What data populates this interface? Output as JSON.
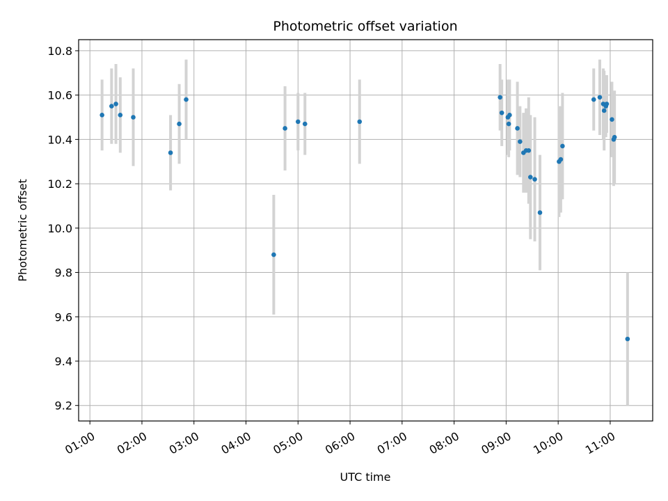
{
  "chart_data": {
    "type": "scatter",
    "title": "Photometric offset variation",
    "xlabel": "UTC time",
    "ylabel": "Photometric offset",
    "x_unit": "UTC time of day",
    "x_ticks": [
      "01:00",
      "02:00",
      "03:00",
      "04:00",
      "05:00",
      "06:00",
      "07:00",
      "08:00",
      "09:00",
      "10:00",
      "11:00"
    ],
    "xlim": [
      "00:47",
      "11:49"
    ],
    "y_ticks": [
      "9.2",
      "9.4",
      "9.6",
      "9.8",
      "10.0",
      "10.2",
      "10.4",
      "10.6",
      "10.8"
    ],
    "ylim": [
      9.13,
      10.85
    ],
    "grid": true,
    "marker_color": "#1f77b4",
    "errorbar_color": "#d3d3d3",
    "series": [
      {
        "points": [
          {
            "x": "01:14",
            "y": 10.51,
            "err": 0.16
          },
          {
            "x": "01:25",
            "y": 10.55,
            "err": 0.17
          },
          {
            "x": "01:30",
            "y": 10.56,
            "err": 0.18
          },
          {
            "x": "01:35",
            "y": 10.51,
            "err": 0.17
          },
          {
            "x": "01:50",
            "y": 10.5,
            "err": 0.22
          },
          {
            "x": "02:33",
            "y": 10.34,
            "err": 0.17
          },
          {
            "x": "02:43",
            "y": 10.47,
            "err": 0.18
          },
          {
            "x": "02:51",
            "y": 10.58,
            "err": 0.18
          },
          {
            "x": "04:32",
            "y": 9.88,
            "err": 0.27
          },
          {
            "x": "04:45",
            "y": 10.45,
            "err": 0.19
          },
          {
            "x": "05:00",
            "y": 10.48,
            "err": 0.13
          },
          {
            "x": "05:08",
            "y": 10.47,
            "err": 0.14
          },
          {
            "x": "06:11",
            "y": 10.48,
            "err": 0.19
          },
          {
            "x": "08:53",
            "y": 10.59,
            "err": 0.15
          },
          {
            "x": "08:55",
            "y": 10.52,
            "err": 0.15
          },
          {
            "x": "09:02",
            "y": 10.5,
            "err": 0.17
          },
          {
            "x": "09:03",
            "y": 10.47,
            "err": 0.15
          },
          {
            "x": "09:04",
            "y": 10.51,
            "err": 0.16
          },
          {
            "x": "09:13",
            "y": 10.45,
            "err": 0.21
          },
          {
            "x": "09:16",
            "y": 10.39,
            "err": 0.16
          },
          {
            "x": "09:20",
            "y": 10.34,
            "err": 0.18
          },
          {
            "x": "09:23",
            "y": 10.35,
            "err": 0.19
          },
          {
            "x": "09:26",
            "y": 10.35,
            "err": 0.24
          },
          {
            "x": "09:28",
            "y": 10.23,
            "err": 0.28
          },
          {
            "x": "09:33",
            "y": 10.22,
            "err": 0.28
          },
          {
            "x": "09:39",
            "y": 10.07,
            "err": 0.26
          },
          {
            "x": "10:01",
            "y": 10.3,
            "err": 0.25
          },
          {
            "x": "10:03",
            "y": 10.31,
            "err": 0.24
          },
          {
            "x": "10:05",
            "y": 10.37,
            "err": 0.24
          },
          {
            "x": "10:41",
            "y": 10.58,
            "err": 0.14
          },
          {
            "x": "10:48",
            "y": 10.59,
            "err": 0.17
          },
          {
            "x": "10:52",
            "y": 10.56,
            "err": 0.16
          },
          {
            "x": "10:53",
            "y": 10.53,
            "err": 0.18
          },
          {
            "x": "10:55",
            "y": 10.55,
            "err": 0.14
          },
          {
            "x": "10:56",
            "y": 10.56,
            "err": 0.13
          },
          {
            "x": "11:02",
            "y": 10.49,
            "err": 0.17
          },
          {
            "x": "11:04",
            "y": 10.4,
            "err": 0.21
          },
          {
            "x": "11:05",
            "y": 10.41,
            "err": 0.21
          },
          {
            "x": "11:20",
            "y": 9.5,
            "err": 0.3
          }
        ]
      }
    ]
  }
}
